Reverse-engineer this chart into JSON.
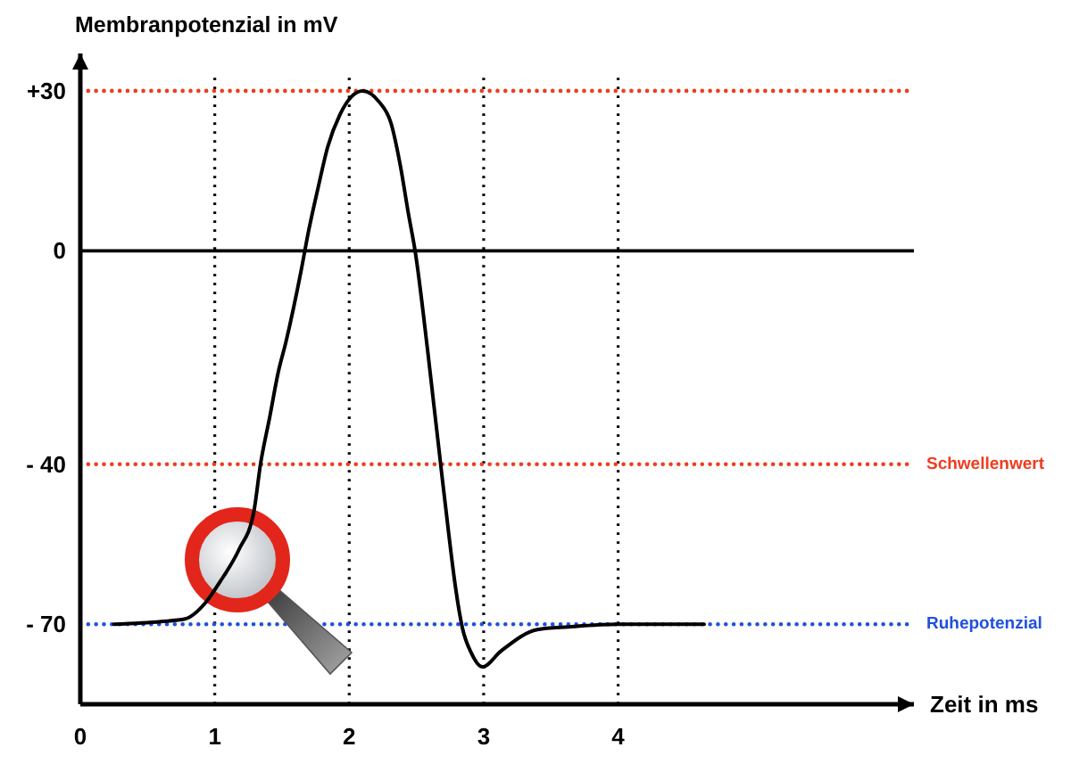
{
  "chart_data": {
    "type": "line",
    "xlabel": "Zeit in ms",
    "ylabel": "Membranpotenzial in mV",
    "x": [
      0.25,
      0.6,
      0.78,
      0.93,
      1.04,
      1.18,
      1.29,
      1.34,
      1.41,
      1.47,
      1.53,
      1.64,
      1.7,
      1.77,
      1.84,
      1.93,
      2.02,
      2.1,
      2.22,
      2.31,
      2.38,
      2.44,
      2.49,
      2.58,
      2.63,
      2.68,
      2.74,
      2.79,
      2.84,
      2.91,
      2.99,
      3.13,
      3.4,
      3.63,
      4.0,
      4.64
    ],
    "series": [
      {
        "color": "#000000",
        "values": [
          -70,
          -69.5,
          -69,
          -66,
          -62,
          -56,
          -49,
          -40,
          -31,
          -23,
          -17,
          -4,
          4,
          12,
          19.5,
          25.5,
          29,
          30,
          28,
          24,
          16,
          7,
          0,
          -18,
          -29,
          -40,
          -53,
          -63,
          -70.5,
          -75.5,
          -78,
          -75,
          -71,
          -70.5,
          -70,
          -70
        ]
      }
    ],
    "xlim": [
      0,
      6.2
    ],
    "ylim": [
      -85,
      37
    ],
    "xticks": [
      0,
      1,
      2,
      3,
      4
    ],
    "yticks": [
      {
        "value": -70,
        "label": "- 70"
      },
      {
        "value": -40,
        "label": "- 40"
      },
      0,
      {
        "value": 30,
        "label": "+30"
      }
    ],
    "grid": "x",
    "ref_lines": [
      {
        "axis": "y",
        "value": 30,
        "color": "#f03c1e",
        "line_style": "dotted"
      },
      {
        "axis": "y",
        "value": 0,
        "color": "#000000",
        "line_style": "solid"
      },
      {
        "axis": "y",
        "value": -40,
        "label": "Schwellenwert",
        "color": "#f03c1e",
        "line_style": "dotted"
      },
      {
        "axis": "y",
        "value": -70,
        "label": "Ruhepotenzial",
        "color": "#2050e0",
        "line_style": "dotted"
      }
    ]
  }
}
